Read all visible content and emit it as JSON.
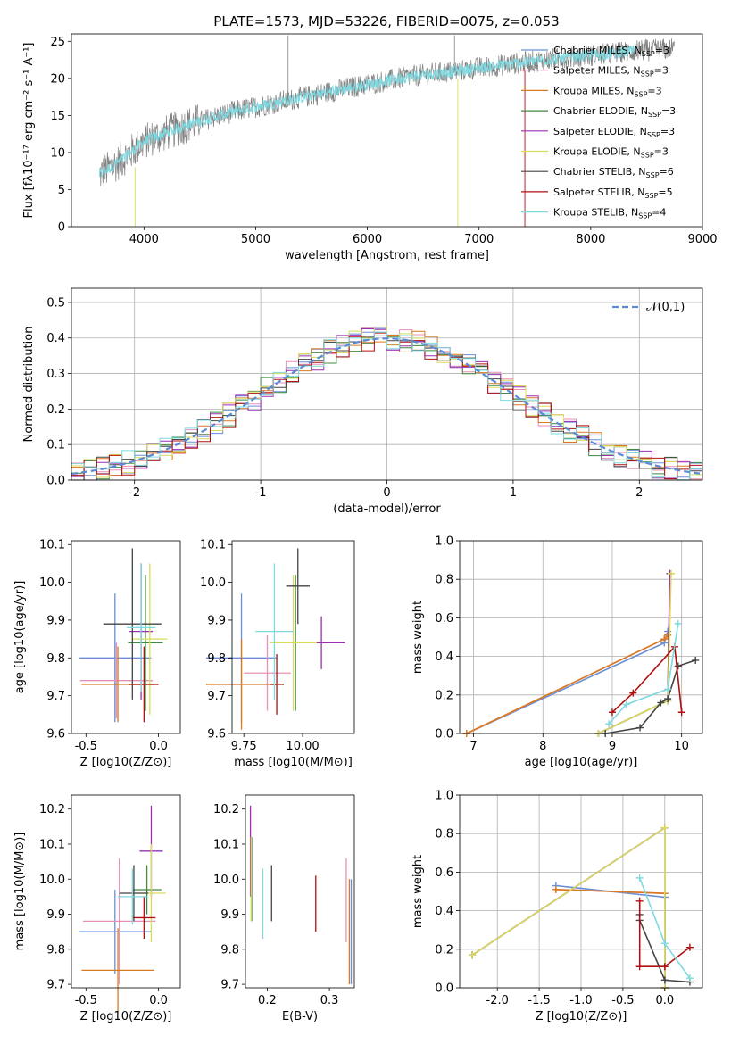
{
  "title": "PLATE=1573, MJD=53226, FIBERID=0075, z=0.053",
  "colors": {
    "Chabrier MILES": "#6a8fd6",
    "Salpeter MILES": "#e890b5",
    "Kroupa MILES": "#d97a20",
    "Chabrier ELODIE": "#3f8a3f",
    "Salpeter ELODIE": "#9a2fb5",
    "Kroupa ELODIE": "#d8dc59",
    "Chabrier STELIB": "#444444",
    "Salpeter STELIB": "#b01010",
    "Kroupa STELIB": "#7fd9e0",
    "data": "#808080",
    "normal": "#5b8ad6"
  },
  "chart_data": [
    {
      "name": "spectrum",
      "type": "line",
      "xlabel": "wavelength [Angstrom, rest frame]",
      "ylabel": "Flux [fλ10⁻¹⁷ erg cm⁻² s⁻¹ A⁻¹]",
      "xlim": [
        3350,
        9000
      ],
      "ylim": [
        0,
        26
      ],
      "xticks": [
        4000,
        5000,
        6000,
        7000,
        8000,
        9000
      ],
      "yticks": [
        0,
        5,
        10,
        15,
        20,
        25
      ],
      "legend_position": "upper right",
      "legend": [
        "Chabrier MILES, N_SSP=3",
        "Salpeter MILES, N_SSP=3",
        "Kroupa MILES, N_SSP=3",
        "Chabrier ELODIE, N_SSP=3",
        "Salpeter ELODIE, N_SSP=3",
        "Kroupa ELODIE, N_SSP=3",
        "Chabrier STELIB, N_SSP=6",
        "Salpeter STELIB, N_SSP=5",
        "Kroupa STELIB, N_SSP=4"
      ],
      "continuum": {
        "x": [
          3600,
          3800,
          4000,
          4400,
          4800,
          5200,
          5600,
          6000,
          6400,
          6800,
          7200,
          7600,
          8000,
          8400,
          8750
        ],
        "y": [
          7,
          9,
          11.5,
          13.8,
          15.5,
          16.8,
          18,
          19.2,
          20.3,
          21,
          21.8,
          22.5,
          23.1,
          23.7,
          24
        ]
      }
    },
    {
      "name": "residual_histogram",
      "type": "step",
      "xlabel": "(data-model)/error",
      "ylabel": "Normed distribution",
      "xlim": [
        -2.5,
        2.5
      ],
      "ylim": [
        0,
        0.54
      ],
      "xticks": [
        -2,
        -1,
        0,
        1,
        2
      ],
      "yticks": [
        0,
        0.1,
        0.2,
        0.3,
        0.4,
        0.5
      ],
      "grid": true,
      "legend": [
        "𝒩(0,1)"
      ],
      "legend_position": "upper right",
      "bin_width": 0.1
    },
    {
      "name": "age_vs_Z",
      "type": "errorbar",
      "xlabel": "Z [log10(Z/Z⊙)]",
      "ylabel": "age [log10(age/yr)]",
      "xlim": [
        -0.6,
        0.15
      ],
      "ylim": [
        9.6,
        10.11
      ],
      "xticks": [
        -0.5,
        0.0
      ],
      "yticks": [
        9.6,
        9.7,
        9.8,
        9.9,
        10.0,
        10.1
      ],
      "points": [
        {
          "model": "Chabrier MILES",
          "x": -0.3,
          "xerr": 0.25,
          "y": 9.8,
          "yerr": 0.17
        },
        {
          "model": "Salpeter MILES",
          "x": -0.29,
          "xerr": 0.25,
          "y": 9.74,
          "yerr": 0.1
        },
        {
          "model": "Kroupa MILES",
          "x": -0.28,
          "xerr": 0.25,
          "y": 9.73,
          "yerr": 0.1
        },
        {
          "model": "Chabrier ELODIE",
          "x": -0.09,
          "xerr": 0.12,
          "y": 9.84,
          "yerr": 0.18
        },
        {
          "model": "Salpeter ELODIE",
          "x": -0.12,
          "xerr": 0.08,
          "y": 9.87,
          "yerr": 0.18
        },
        {
          "model": "Kroupa ELODIE",
          "x": -0.06,
          "xerr": 0.12,
          "y": 9.85,
          "yerr": 0.2
        },
        {
          "model": "Chabrier STELIB",
          "x": -0.18,
          "xerr": 0.2,
          "y": 9.89,
          "yerr": 0.2
        },
        {
          "model": "Salpeter STELIB",
          "x": -0.1,
          "xerr": 0.1,
          "y": 9.73,
          "yerr": 0.1
        },
        {
          "model": "Kroupa STELIB",
          "x": -0.12,
          "xerr": 0.1,
          "y": 9.88,
          "yerr": 0.17
        }
      ]
    },
    {
      "name": "age_vs_mass",
      "type": "errorbar",
      "xlabel": "mass [log10(M/M⊙)]",
      "xlim": [
        9.7,
        10.22
      ],
      "ylim": [
        9.6,
        10.11
      ],
      "xticks": [
        9.75,
        10.0
      ],
      "yticks": [
        9.6,
        9.7,
        9.8,
        9.9,
        10.0,
        10.1
      ],
      "points": [
        {
          "model": "Chabrier MILES",
          "x": 9.74,
          "xerr": 0.15,
          "y": 9.8,
          "yerr": 0.17
        },
        {
          "model": "Salpeter MILES",
          "x": 9.85,
          "xerr": 0.1,
          "y": 9.76,
          "yerr": 0.1
        },
        {
          "model": "Kroupa MILES",
          "x": 9.74,
          "xerr": 0.15,
          "y": 9.73,
          "yerr": 0.12
        },
        {
          "model": "Chabrier ELODIE",
          "x": 9.97,
          "xerr": 0.09,
          "y": 9.84,
          "yerr": 0.18
        },
        {
          "model": "Salpeter ELODIE",
          "x": 10.08,
          "xerr": 0.1,
          "y": 9.84,
          "yerr": 0.07
        },
        {
          "model": "Kroupa ELODIE",
          "x": 9.96,
          "xerr": 0.1,
          "y": 9.84,
          "yerr": 0.18
        },
        {
          "model": "Chabrier STELIB",
          "x": 9.98,
          "xerr": 0.05,
          "y": 9.99,
          "yerr": 0.1
        },
        {
          "model": "Salpeter STELIB",
          "x": 9.89,
          "xerr": 0.03,
          "y": 9.73,
          "yerr": 0.08
        },
        {
          "model": "Kroupa STELIB",
          "x": 9.88,
          "xerr": 0.08,
          "y": 9.87,
          "yerr": 0.18
        }
      ]
    },
    {
      "name": "mass_weight_vs_age",
      "type": "line",
      "xlabel": "age [log10(age/yr)]",
      "ylabel": "mass weight",
      "xlim": [
        6.8,
        10.3
      ],
      "ylim": [
        0,
        1
      ],
      "xticks": [
        7,
        8,
        9,
        10
      ],
      "yticks": [
        0,
        0.2,
        0.4,
        0.6,
        0.8,
        1.0
      ],
      "grid": true,
      "series": [
        {
          "model": "Chabrier MILES",
          "x": [
            6.9,
            9.75,
            9.8
          ],
          "y": [
            0,
            0.47,
            0.53
          ]
        },
        {
          "model": "Salpeter MILES",
          "x": [
            6.9,
            9.75,
            9.8
          ],
          "y": [
            0,
            0.49,
            0.51
          ]
        },
        {
          "model": "Kroupa MILES",
          "x": [
            6.9,
            9.75,
            9.8
          ],
          "y": [
            0,
            0.49,
            0.51
          ]
        },
        {
          "model": "Chabrier ELODIE",
          "x": [
            8.8,
            9.8,
            9.83
          ],
          "y": [
            0,
            0.17,
            0.83
          ]
        },
        {
          "model": "Salpeter ELODIE",
          "x": [
            8.8,
            9.8,
            9.83
          ],
          "y": [
            0,
            0.17,
            0.83
          ]
        },
        {
          "model": "Kroupa ELODIE",
          "x": [
            8.8,
            9.8,
            9.85
          ],
          "y": [
            0,
            0.17,
            0.83
          ]
        },
        {
          "model": "Chabrier STELIB",
          "x": [
            8.9,
            9.4,
            9.7,
            9.8,
            9.95,
            10.2
          ],
          "y": [
            0,
            0.03,
            0.16,
            0.18,
            0.35,
            0.38
          ]
        },
        {
          "model": "Salpeter STELIB",
          "x": [
            9.0,
            9.3,
            9.9,
            10.0
          ],
          "y": [
            0.11,
            0.21,
            0.45,
            0.11
          ]
        },
        {
          "model": "Kroupa STELIB",
          "x": [
            8.95,
            9.2,
            9.8,
            9.95
          ],
          "y": [
            0.05,
            0.15,
            0.23,
            0.57
          ]
        }
      ]
    },
    {
      "name": "mass_vs_Z",
      "type": "errorbar",
      "xlabel": "Z [log10(Z/Z⊙)]",
      "ylabel": "mass [log10(M/M⊙)]",
      "xlim": [
        -0.6,
        0.15
      ],
      "ylim": [
        9.69,
        10.24
      ],
      "xticks": [
        -0.5,
        0.0
      ],
      "yticks": [
        9.7,
        9.8,
        9.9,
        10.0,
        10.1,
        10.2
      ],
      "points": [
        {
          "model": "Chabrier MILES",
          "x": -0.3,
          "xerr": 0.25,
          "y": 9.85,
          "yerr": 0.12
        },
        {
          "model": "Salpeter MILES",
          "x": -0.27,
          "xerr": 0.25,
          "y": 9.88,
          "yerr": 0.18
        },
        {
          "model": "Kroupa MILES",
          "x": -0.28,
          "xerr": 0.25,
          "y": 9.74,
          "yerr": 0.12
        },
        {
          "model": "Chabrier ELODIE",
          "x": -0.08,
          "xerr": 0.1,
          "y": 9.97,
          "yerr": 0.07
        },
        {
          "model": "Salpeter ELODIE",
          "x": -0.05,
          "xerr": 0.08,
          "y": 10.08,
          "yerr": 0.13
        },
        {
          "model": "Kroupa ELODIE",
          "x": -0.05,
          "xerr": 0.1,
          "y": 9.96,
          "yerr": 0.14
        },
        {
          "model": "Chabrier STELIB",
          "x": -0.17,
          "xerr": 0.1,
          "y": 9.96,
          "yerr": 0.08
        },
        {
          "model": "Salpeter STELIB",
          "x": -0.1,
          "xerr": 0.08,
          "y": 9.89,
          "yerr": 0.06
        },
        {
          "model": "Kroupa STELIB",
          "x": -0.18,
          "xerr": 0.1,
          "y": 9.95,
          "yerr": 0.08
        }
      ]
    },
    {
      "name": "mass_vs_ebv",
      "type": "errorbar",
      "xlabel": "E(B-V)",
      "xlim": [
        0.165,
        0.34
      ],
      "ylim": [
        9.69,
        10.24
      ],
      "xticks": [
        0.2,
        0.3
      ],
      "yticks": [
        9.7,
        9.8,
        9.9,
        10.0,
        10.1,
        10.2
      ],
      "points": [
        {
          "model": "Chabrier MILES",
          "x": 0.335,
          "y": 9.85,
          "yerr": 0.15
        },
        {
          "model": "Salpeter MILES",
          "x": 0.327,
          "y": 9.94,
          "yerr": 0.12
        },
        {
          "model": "Kroupa MILES",
          "x": 0.332,
          "y": 9.85,
          "yerr": 0.15
        },
        {
          "model": "Chabrier ELODIE",
          "x": 0.175,
          "y": 10.0,
          "yerr": 0.12
        },
        {
          "model": "Salpeter ELODIE",
          "x": 0.173,
          "y": 10.08,
          "yerr": 0.13
        },
        {
          "model": "Kroupa ELODIE",
          "x": 0.174,
          "y": 10.0,
          "yerr": 0.12
        },
        {
          "model": "Chabrier STELIB",
          "x": 0.207,
          "y": 9.96,
          "yerr": 0.08
        },
        {
          "model": "Salpeter STELIB",
          "x": 0.278,
          "y": 9.93,
          "yerr": 0.08
        },
        {
          "model": "Kroupa STELIB",
          "x": 0.193,
          "y": 9.93,
          "yerr": 0.1
        }
      ]
    },
    {
      "name": "mass_weight_vs_Z",
      "type": "line",
      "xlabel": "Z [log10(Z/Z⊙)]",
      "ylabel": "mass weight",
      "xlim": [
        -2.45,
        0.45
      ],
      "ylim": [
        0,
        1
      ],
      "xticks": [
        -2.0,
        -1.5,
        -1.0,
        -0.5,
        0.0
      ],
      "yticks": [
        0,
        0.2,
        0.4,
        0.6,
        0.8,
        1.0
      ],
      "grid": true,
      "series": [
        {
          "model": "Chabrier MILES",
          "x": [
            -1.3,
            0.0,
            0.0
          ],
          "y": [
            0.53,
            0.47,
            0.0
          ]
        },
        {
          "model": "Salpeter MILES",
          "x": [
            -1.3,
            0.0,
            0.0
          ],
          "y": [
            0.51,
            0.49,
            0.0
          ]
        },
        {
          "model": "Kroupa MILES",
          "x": [
            -1.3,
            0.0,
            0.0
          ],
          "y": [
            0.51,
            0.49,
            0.0
          ]
        },
        {
          "model": "Chabrier ELODIE",
          "x": [
            -2.3,
            0.0,
            0.0
          ],
          "y": [
            0.17,
            0.83,
            0.0
          ]
        },
        {
          "model": "Salpeter ELODIE",
          "x": [
            -2.3,
            0.0,
            0.0
          ],
          "y": [
            0.17,
            0.83,
            0.0
          ]
        },
        {
          "model": "Kroupa ELODIE",
          "x": [
            -2.3,
            0.0,
            0.0
          ],
          "y": [
            0.17,
            0.83,
            0.0
          ]
        },
        {
          "model": "Chabrier STELIB",
          "x": [
            -0.3,
            -0.3,
            0.0,
            0.3
          ],
          "y": [
            0.38,
            0.35,
            0.04,
            0.03
          ]
        },
        {
          "model": "Salpeter STELIB",
          "x": [
            -0.3,
            -0.3,
            0.0,
            0.3
          ],
          "y": [
            0.45,
            0.11,
            0.11,
            0.21
          ]
        },
        {
          "model": "Kroupa STELIB",
          "x": [
            -0.3,
            0.0,
            0.3
          ],
          "y": [
            0.57,
            0.23,
            0.05
          ]
        }
      ]
    }
  ]
}
